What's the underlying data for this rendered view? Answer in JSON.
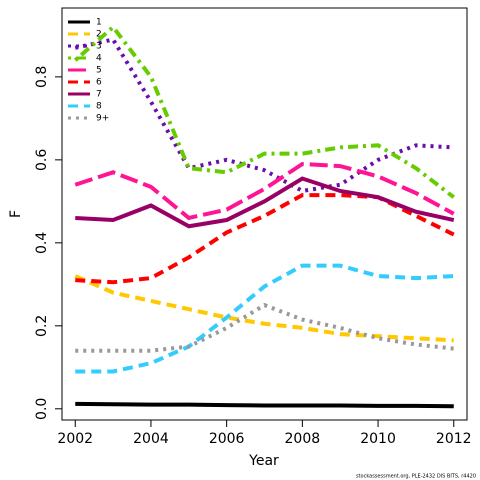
{
  "chart_data": {
    "type": "line",
    "x_label": "Year",
    "y_label": "F",
    "footnote": "stockassessment.org, PLE-2432 DIS BITS, r4420",
    "x": [
      2002,
      2003,
      2004,
      2005,
      2006,
      2007,
      2008,
      2009,
      2010,
      2011,
      2012
    ],
    "xlim": [
      2001.65,
      2012.35
    ],
    "xticks": [
      2002,
      2004,
      2006,
      2008,
      2010,
      2012
    ],
    "ylim": [
      -0.027,
      0.966
    ],
    "yticks": [
      {
        "value": 0,
        "label": "0.0"
      },
      0.2,
      0.4,
      0.6,
      0.8
    ],
    "legend": "top-left",
    "series": [
      {
        "name": "1",
        "color": "#000000",
        "line_style": "solid",
        "values": [
          0.012,
          0.011,
          0.01,
          0.01,
          0.009,
          0.008,
          0.008,
          0.008,
          0.007,
          0.007,
          0.006
        ]
      },
      {
        "name": "2",
        "color": "#ffc800",
        "line_style": "dashed",
        "values": [
          0.32,
          0.28,
          0.26,
          0.24,
          0.22,
          0.205,
          0.195,
          0.18,
          0.175,
          0.17,
          0.165
        ]
      },
      {
        "name": "3",
        "color": "#6a0dad",
        "line_style": "dotted",
        "values": [
          0.87,
          0.89,
          0.74,
          0.58,
          0.6,
          0.575,
          0.525,
          0.54,
          0.6,
          0.635,
          0.63
        ]
      },
      {
        "name": "4",
        "color": "#66cc00",
        "line_style": "dashdot",
        "values": [
          0.84,
          0.92,
          0.8,
          0.58,
          0.57,
          0.615,
          0.615,
          0.63,
          0.635,
          0.58,
          0.51
        ]
      },
      {
        "name": "5",
        "color": "#ff1493",
        "line_style": "longdash",
        "values": [
          0.54,
          0.57,
          0.535,
          0.46,
          0.48,
          0.53,
          0.59,
          0.585,
          0.56,
          0.52,
          0.47
        ]
      },
      {
        "name": "6",
        "color": "#ff0000",
        "line_style": "dashed",
        "values": [
          0.31,
          0.305,
          0.315,
          0.365,
          0.425,
          0.465,
          0.515,
          0.515,
          0.51,
          0.465,
          0.42
        ]
      },
      {
        "name": "7",
        "color": "#990066",
        "line_style": "solid",
        "values": [
          0.46,
          0.455,
          0.49,
          0.44,
          0.455,
          0.5,
          0.555,
          0.525,
          0.51,
          0.475,
          0.455
        ]
      },
      {
        "name": "8",
        "color": "#33ccff",
        "line_style": "dashed",
        "values": [
          0.09,
          0.09,
          0.11,
          0.15,
          0.22,
          0.295,
          0.345,
          0.345,
          0.32,
          0.315,
          0.32
        ]
      },
      {
        "name": "9+",
        "color": "#999999",
        "line_style": "dotted",
        "values": [
          0.14,
          0.14,
          0.14,
          0.15,
          0.195,
          0.25,
          0.215,
          0.195,
          0.17,
          0.155,
          0.145
        ]
      }
    ]
  }
}
